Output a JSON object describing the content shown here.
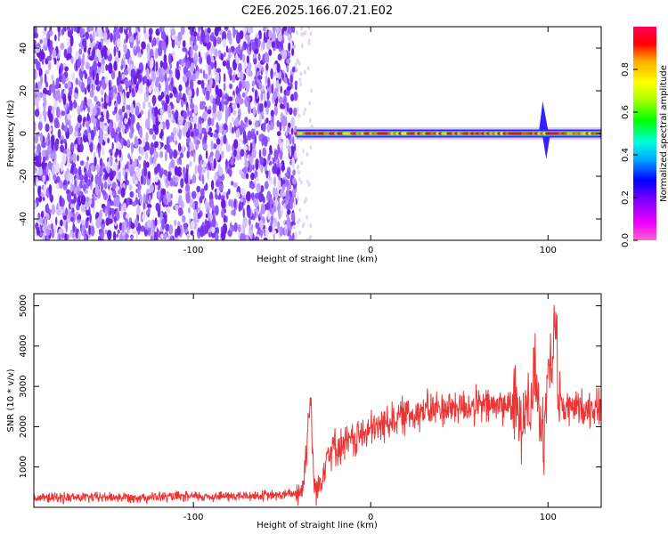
{
  "figure_title": "C2E6.2025.166.07.21.E02",
  "chart_data": [
    {
      "type": "heatmap",
      "xlabel": "Height of straight line (km)",
      "ylabel": "Frequency (Hz)",
      "xlim": [
        -190,
        130
      ],
      "ylim": [
        -50,
        50
      ],
      "x_ticks": [
        -100,
        0,
        100
      ],
      "x_tick_labels": [
        "-100",
        "0",
        "100"
      ],
      "y_ticks": [
        -40,
        -20,
        0,
        20,
        40
      ],
      "y_tick_labels": [
        "-40",
        "-20",
        "0",
        "20",
        "40"
      ],
      "colorbar": {
        "label": "Normalized spectral amplitude",
        "ticks": [
          0.0,
          0.2,
          0.4,
          0.6,
          0.8
        ],
        "tick_labels": [
          "0.0",
          "0.2",
          "0.4",
          "0.6",
          "0.8"
        ],
        "range": [
          0,
          1
        ],
        "colormap": [
          "#ff66cc",
          "#ee00ff",
          "#8800ff",
          "#0000ff",
          "#00aaff",
          "#00ffdd",
          "#00ff00",
          "#aaff00",
          "#ffff00",
          "#ffaa00",
          "#ff0000",
          "#ff0055"
        ]
      },
      "regions": [
        {
          "x_from": -190,
          "x_to": -42,
          "description_values": "noise",
          "freq_range": [
            -50,
            50
          ],
          "amplitude": 0.1
        },
        {
          "x_from": -42,
          "x_to": 130,
          "freq_center": 0,
          "freq_halfwidth": 3,
          "amplitude": 0.9
        }
      ],
      "grid": false
    },
    {
      "type": "line",
      "xlabel": "Height of straight line (km)",
      "ylabel": "SNR (10 * v/v)",
      "xlim": [
        -190,
        130
      ],
      "ylim": [
        0,
        5300
      ],
      "x_ticks": [
        -100,
        0,
        100
      ],
      "x_tick_labels": [
        "-100",
        "0",
        "100"
      ],
      "y_ticks": [
        1000,
        2000,
        3000,
        4000,
        5000
      ],
      "y_tick_labels": [
        "1000",
        "2000",
        "3000",
        "4000",
        "5000"
      ],
      "line_color": "#ee3333",
      "grid": false,
      "series": [
        {
          "x": [
            -190,
            -170,
            -150,
            -130,
            -110,
            -90,
            -70,
            -50,
            -42,
            -38,
            -34,
            -32,
            -30,
            -28,
            -26,
            -24,
            -20,
            -15,
            -10,
            -5,
            0,
            5,
            10,
            20,
            30,
            40,
            50,
            60,
            70,
            80,
            85,
            88,
            90,
            92,
            95,
            98,
            100,
            102,
            104,
            106,
            110,
            120,
            130
          ],
          "y": [
            230,
            240,
            250,
            250,
            260,
            270,
            280,
            300,
            350,
            500,
            2800,
            600,
            400,
            700,
            1100,
            1400,
            1500,
            1550,
            1650,
            1800,
            1900,
            2000,
            2150,
            2300,
            2400,
            2450,
            2500,
            2500,
            2520,
            2550,
            2200,
            3000,
            2100,
            3600,
            2300,
            1800,
            4300,
            3000,
            5200,
            2600,
            2450,
            2480,
            2500
          ]
        }
      ]
    }
  ]
}
